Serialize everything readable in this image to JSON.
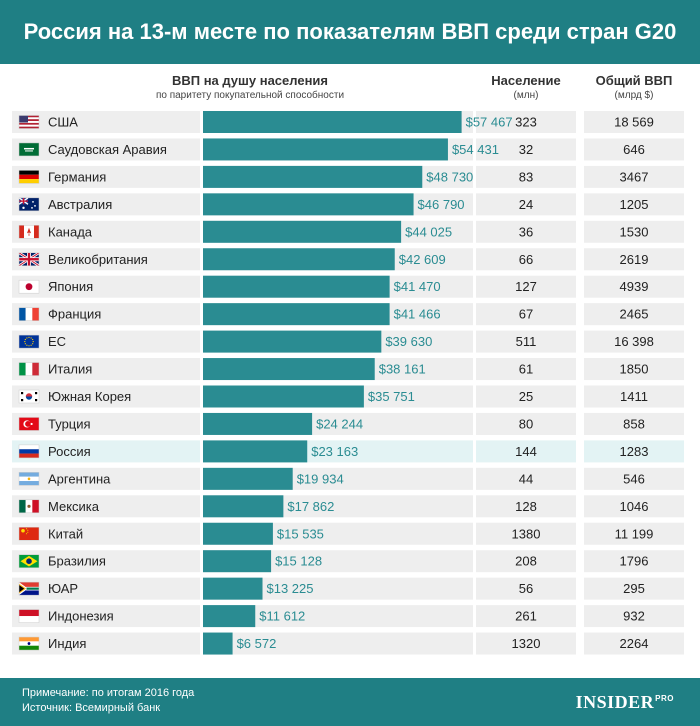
{
  "header": {
    "title": "Россия на 13-м месте по показателям ВВП среди стран G20"
  },
  "columns": {
    "gdp_pc_title": "ВВП на душу населения",
    "gdp_pc_subtitle": "по паритету покупательной способности",
    "population_title": "Население",
    "population_unit": "(млн)",
    "gdp_title": "Общий ВВП",
    "gdp_unit": "(млрд $)"
  },
  "chart_data": {
    "type": "bar",
    "orientation": "horizontal",
    "highlight_row": "Россия",
    "colors": {
      "bar": "#2a8c92",
      "bar_label": "#2a8c92",
      "row_bg": "#eeeeee",
      "row_bg_highlight": "#e3f3f4",
      "header": "#1f7f84"
    },
    "categories": [
      "США",
      "Саудовская Аравия",
      "Германия",
      "Австралия",
      "Канада",
      "Великобритания",
      "Япония",
      "Франция",
      "ЕС",
      "Италия",
      "Южная Корея",
      "Турция",
      "Россия",
      "Аргентина",
      "Мексика",
      "Китай",
      "Бразилия",
      "ЮАР",
      "Индонезия",
      "Индия"
    ],
    "flags": [
      "us-flag-icon",
      "saudi-arabia-flag-icon",
      "germany-flag-icon",
      "australia-flag-icon",
      "canada-flag-icon",
      "uk-flag-icon",
      "japan-flag-icon",
      "france-flag-icon",
      "eu-flag-icon",
      "italy-flag-icon",
      "south-korea-flag-icon",
      "turkey-flag-icon",
      "russia-flag-icon",
      "argentina-flag-icon",
      "mexico-flag-icon",
      "china-flag-icon",
      "brazil-flag-icon",
      "south-africa-flag-icon",
      "indonesia-flag-icon",
      "india-flag-icon"
    ],
    "values": [
      57467,
      54431,
      48730,
      46790,
      44025,
      42609,
      41470,
      41466,
      39630,
      38161,
      35751,
      24244,
      23163,
      19934,
      17862,
      15535,
      15128,
      13225,
      11612,
      6572
    ],
    "value_labels": [
      "$57 467",
      "$54 431",
      "$48 730",
      "$46 790",
      "$44 025",
      "$42 609",
      "$41 470",
      "$41 466",
      "$39 630",
      "$38 161",
      "$35 751",
      "$24 244",
      "$23 163",
      "$19 934",
      "$17 862",
      "$15 535",
      "$15 128",
      "$13 225",
      "$11 612",
      "$6 572"
    ],
    "population": [
      "323",
      "32",
      "83",
      "24",
      "36",
      "66",
      "127",
      "67",
      "511",
      "61",
      "25",
      "80",
      "144",
      "44",
      "128",
      "1380",
      "208",
      "56",
      "261",
      "1320"
    ],
    "gdp_total": [
      "18 569",
      "646",
      "3467",
      "1205",
      "1530",
      "2619",
      "4939",
      "2465",
      "16 398",
      "1850",
      "1411",
      "858",
      "1283",
      "546",
      "1046",
      "11 199",
      "1796",
      "295",
      "932",
      "2264"
    ]
  },
  "footer": {
    "note": "Примечание: по итогам 2016 года",
    "source": "Источник: Всемирный банк",
    "brand": "INSIDER",
    "brand_suffix": "PRO"
  }
}
